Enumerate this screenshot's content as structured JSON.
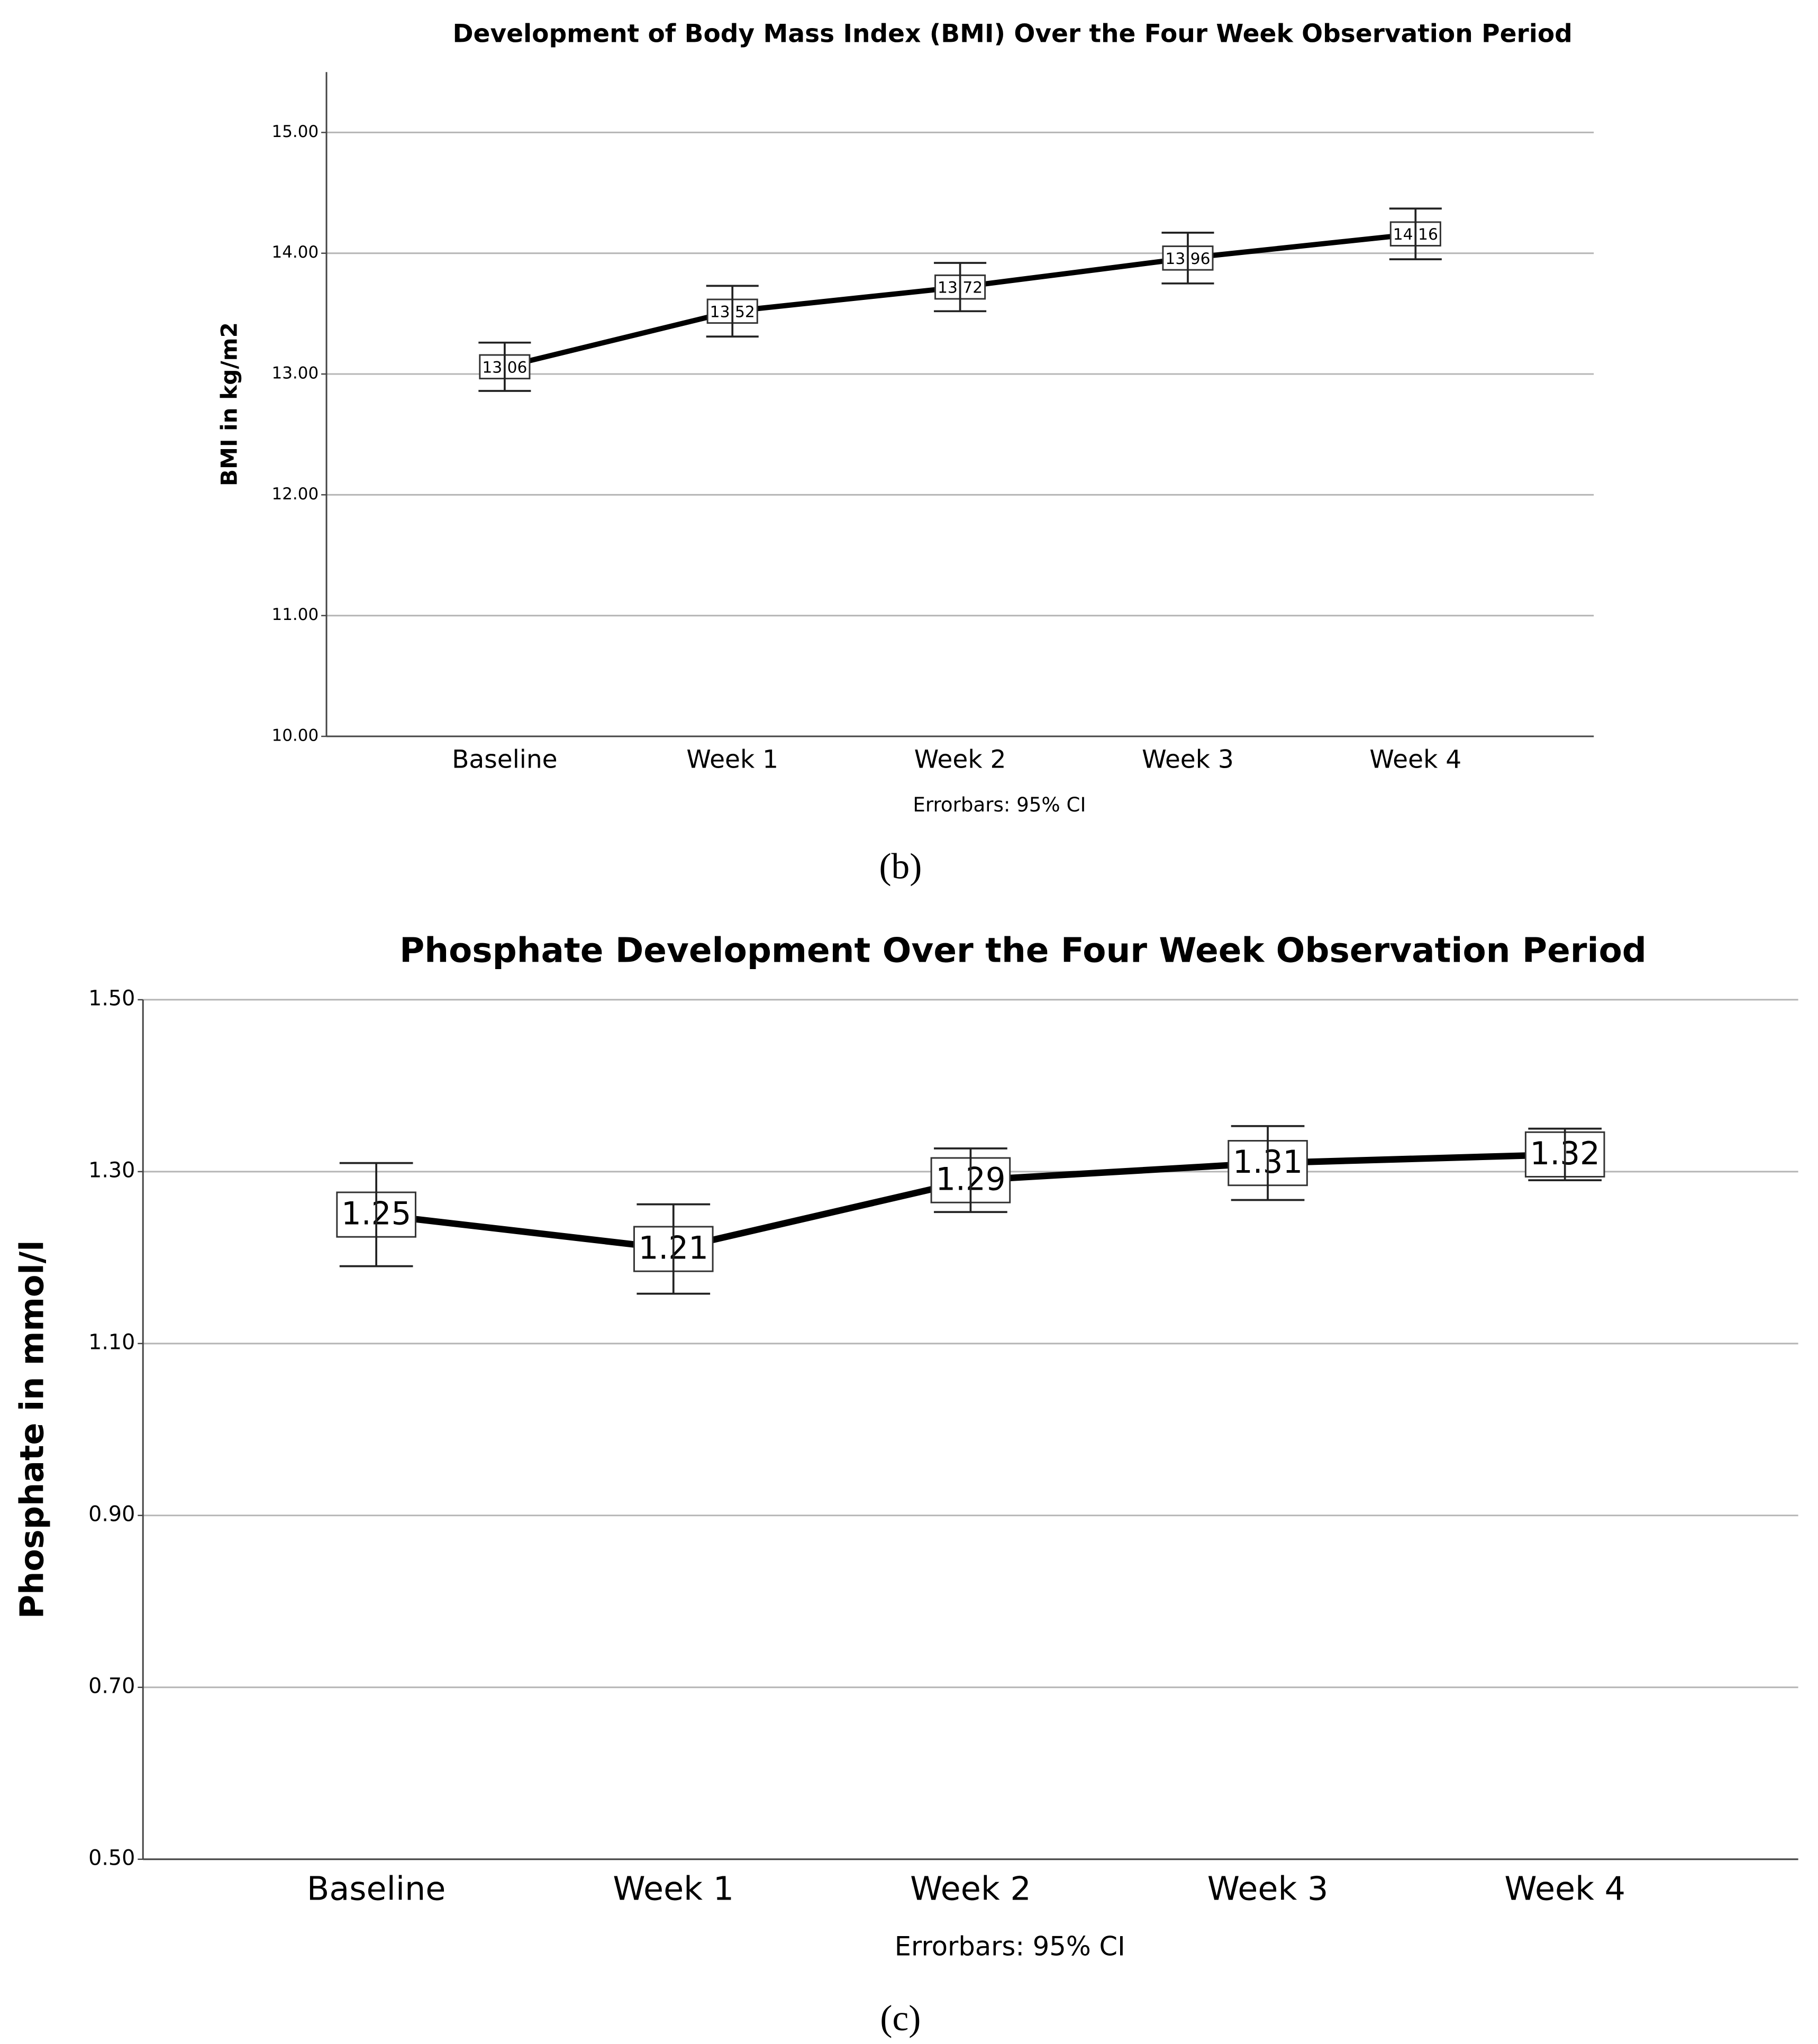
{
  "chart_data": [
    {
      "type": "line",
      "title": "Development of Body Mass Index (BMI) Over the Four Week Observation Period",
      "y_label": "BMI in kg/m2",
      "note": "Errorbars: 95% CI",
      "caption": "(b)",
      "categories": [
        "Baseline",
        "Week 1",
        "Week 2",
        "Week 3",
        "Week 4"
      ],
      "values": [
        13.06,
        13.52,
        13.72,
        13.96,
        14.16
      ],
      "errors": [
        0.2,
        0.21,
        0.2,
        0.21,
        0.21
      ],
      "color": "#000000",
      "ylim": [
        10,
        15.5
      ],
      "yticks": [
        {
          "value": 10,
          "label": "10.00"
        },
        {
          "value": 11,
          "label": "11.00"
        },
        {
          "value": 12,
          "label": "12.00"
        },
        {
          "value": 13,
          "label": "13.00"
        },
        {
          "value": 14,
          "label": "14.00"
        },
        {
          "value": 15,
          "label": "15.00"
        }
      ],
      "grid": true
    },
    {
      "type": "line",
      "title": "Phosphate Development Over the Four Week Observation Period",
      "y_label": "Phosphate in mmol/l",
      "note": "Errorbars: 95% CI",
      "caption": "(c)",
      "categories": [
        "Baseline",
        "Week 1",
        "Week 2",
        "Week 3",
        "Week 4"
      ],
      "values": [
        1.25,
        1.21,
        1.29,
        1.31,
        1.32
      ],
      "errors": [
        0.06,
        0.052,
        0.037,
        0.043,
        0.03
      ],
      "color": "#000000",
      "ylim": [
        0.5,
        1.5
      ],
      "yticks": [
        {
          "value": 0.5,
          "label": "0.50"
        },
        {
          "value": 0.7,
          "label": "0.70"
        },
        {
          "value": 0.9,
          "label": "0.90"
        },
        {
          "value": 1.1,
          "label": "1.10"
        },
        {
          "value": 1.3,
          "label": "1.30"
        },
        {
          "value": 1.5,
          "label": "1.50"
        }
      ],
      "grid": true
    }
  ]
}
